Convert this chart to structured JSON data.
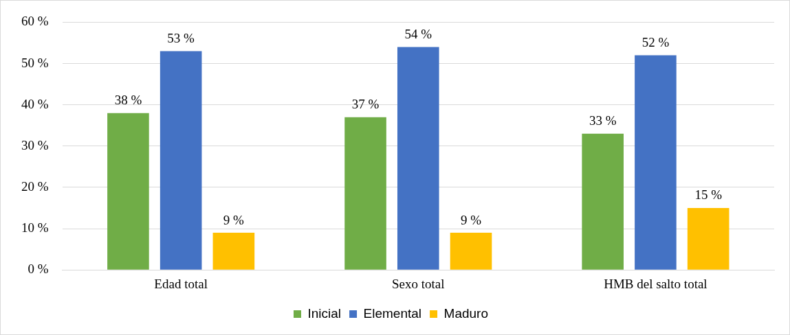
{
  "chart_data": {
    "type": "bar",
    "categories": [
      "Edad total",
      "Sexo total",
      "HMB del salto total"
    ],
    "series": [
      {
        "name": "Inicial",
        "color": "#70ad47",
        "values": [
          38,
          37,
          33
        ],
        "value_labels": [
          "38 %",
          "37 %",
          "33 %"
        ]
      },
      {
        "name": "Elemental",
        "color": "#4472c4",
        "values": [
          53,
          54,
          52
        ],
        "value_labels": [
          "53 %",
          "54 %",
          "52 %"
        ]
      },
      {
        "name": "Maduro",
        "color": "#ffc000",
        "values": [
          9,
          9,
          15
        ],
        "value_labels": [
          "9 %",
          "9 %",
          "15 %"
        ]
      }
    ],
    "ylim": [
      0,
      60
    ],
    "yticks": [
      {
        "value": 0,
        "label": "0 %"
      },
      {
        "value": 10,
        "label": "10 %"
      },
      {
        "value": 20,
        "label": "20 %"
      },
      {
        "value": 30,
        "label": "30 %"
      },
      {
        "value": 40,
        "label": "40 %"
      },
      {
        "value": 50,
        "label": "50 %"
      },
      {
        "value": 60,
        "label": "60 %"
      }
    ],
    "grid": "y",
    "legend": "bottom"
  }
}
